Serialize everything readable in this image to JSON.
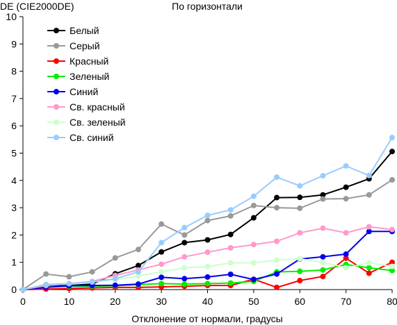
{
  "chart_data": {
    "type": "line",
    "title": "По горизонтали",
    "ylabel": "DE (CIE2000DE)",
    "xlabel": "Отклонение от нормали, градусы",
    "x": [
      0,
      5,
      10,
      15,
      20,
      25,
      30,
      35,
      40,
      45,
      50,
      55,
      60,
      65,
      70,
      75,
      80
    ],
    "xlim": [
      0,
      80
    ],
    "ylim": [
      0,
      10
    ],
    "x_ticks": [
      "0",
      "10",
      "20",
      "30",
      "40",
      "50",
      "60",
      "70",
      "80"
    ],
    "y_ticks": [
      "0",
      "1",
      "2",
      "3",
      "4",
      "5",
      "6",
      "7",
      "8",
      "9",
      "10"
    ],
    "grid": false,
    "legend_position": "top-left",
    "series": [
      {
        "name": "Белый",
        "color": "#000000",
        "values": [
          0,
          0.12,
          0.15,
          0.2,
          0.58,
          0.88,
          1.38,
          1.72,
          1.82,
          2.02,
          2.63,
          3.37,
          3.38,
          3.47,
          3.75,
          4.06,
          5.06
        ]
      },
      {
        "name": "Серый",
        "color": "#999999",
        "values": [
          0,
          0.57,
          0.47,
          0.65,
          1.16,
          1.47,
          2.4,
          2.0,
          2.53,
          2.7,
          3.08,
          3.0,
          2.98,
          3.32,
          3.33,
          3.47,
          4.02
        ]
      },
      {
        "name": "Красный",
        "color": "#ff0000",
        "values": [
          0,
          0.02,
          0.04,
          0.06,
          0.08,
          0.08,
          0.1,
          0.12,
          0.15,
          0.15,
          0.38,
          0.08,
          0.33,
          0.48,
          1.15,
          0.6,
          1.0
        ]
      },
      {
        "name": "Зеленый",
        "color": "#00ee00",
        "values": [
          0,
          0.1,
          0.12,
          0.12,
          0.14,
          0.18,
          0.22,
          0.2,
          0.22,
          0.24,
          0.3,
          0.65,
          0.67,
          0.72,
          0.92,
          0.8,
          0.7
        ]
      },
      {
        "name": "Синий",
        "color": "#0000ee",
        "values": [
          0,
          0.08,
          0.14,
          0.15,
          0.16,
          0.2,
          0.45,
          0.4,
          0.46,
          0.56,
          0.37,
          0.57,
          1.12,
          1.2,
          1.3,
          2.13,
          2.13
        ]
      },
      {
        "name": "Св. красный",
        "color": "#ff99cc",
        "values": [
          0,
          0.15,
          0.22,
          0.3,
          0.52,
          0.72,
          0.93,
          1.2,
          1.37,
          1.53,
          1.65,
          1.77,
          2.08,
          2.25,
          2.08,
          2.3,
          2.2
        ]
      },
      {
        "name": "Св. зеленый",
        "color": "#ccffcc",
        "values": [
          0,
          0.2,
          0.22,
          0.28,
          0.36,
          0.5,
          0.65,
          0.8,
          0.84,
          0.98,
          0.98,
          1.08,
          1.13,
          1.0,
          0.8,
          0.98,
          0.85
        ]
      },
      {
        "name": "Св. синий",
        "color": "#99ccff",
        "values": [
          0,
          0.18,
          0.22,
          0.28,
          0.4,
          0.65,
          1.72,
          2.27,
          2.72,
          2.92,
          3.42,
          4.12,
          3.8,
          4.17,
          4.53,
          4.18,
          5.57
        ]
      }
    ]
  }
}
